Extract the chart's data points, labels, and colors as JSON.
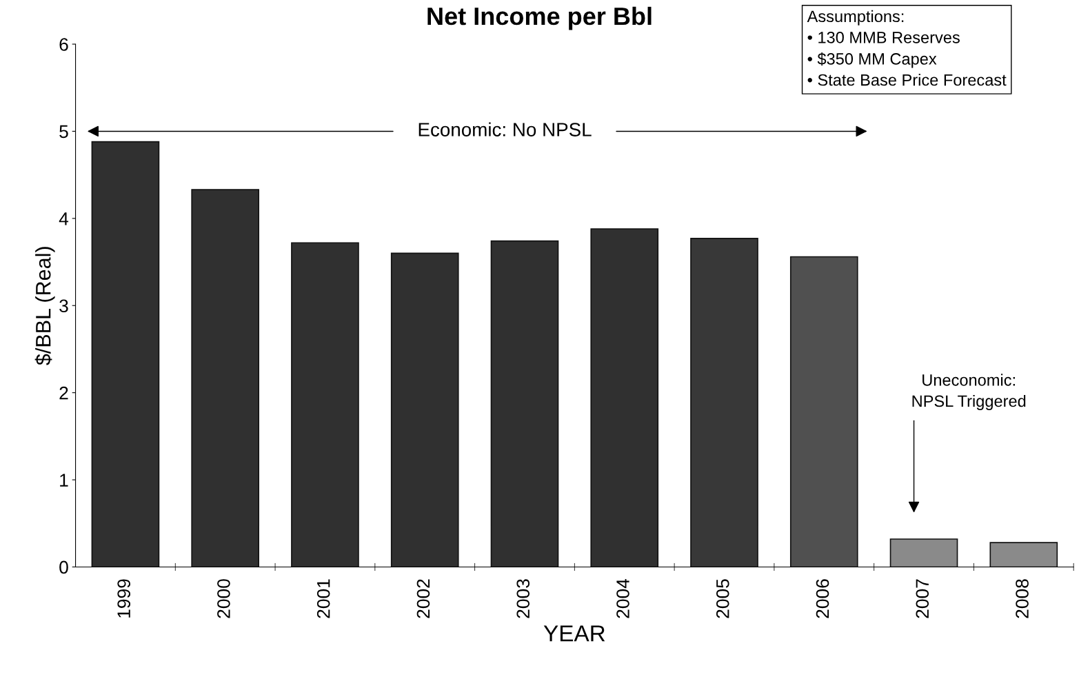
{
  "chart_data": {
    "type": "bar",
    "title": "Net Income per Bbl",
    "xlabel": "YEAR",
    "ylabel": "$/BBL (Real)",
    "categories": [
      "1999",
      "2000",
      "2001",
      "2002",
      "2003",
      "2004",
      "2005",
      "2006",
      "2007",
      "2008"
    ],
    "values": [
      4.88,
      4.33,
      3.72,
      3.6,
      3.74,
      3.88,
      3.77,
      3.56,
      0.32,
      0.28
    ],
    "colors": [
      "#303030",
      "#303030",
      "#303030",
      "#303030",
      "#303030",
      "#303030",
      "#383838",
      "#505050",
      "#8a8a8a",
      "#8a8a8a"
    ],
    "ylim": [
      0,
      6
    ],
    "yticks": [
      0,
      1,
      2,
      3,
      4,
      5,
      6
    ],
    "grid": false,
    "annotations": [
      "Assumptions:\n• 130 MMB Reserves\n• $350 MM Capex\n• State Base Price Forecast",
      "Economic: No NPSL",
      "Uneconomic:\nNPSL Triggered"
    ]
  }
}
